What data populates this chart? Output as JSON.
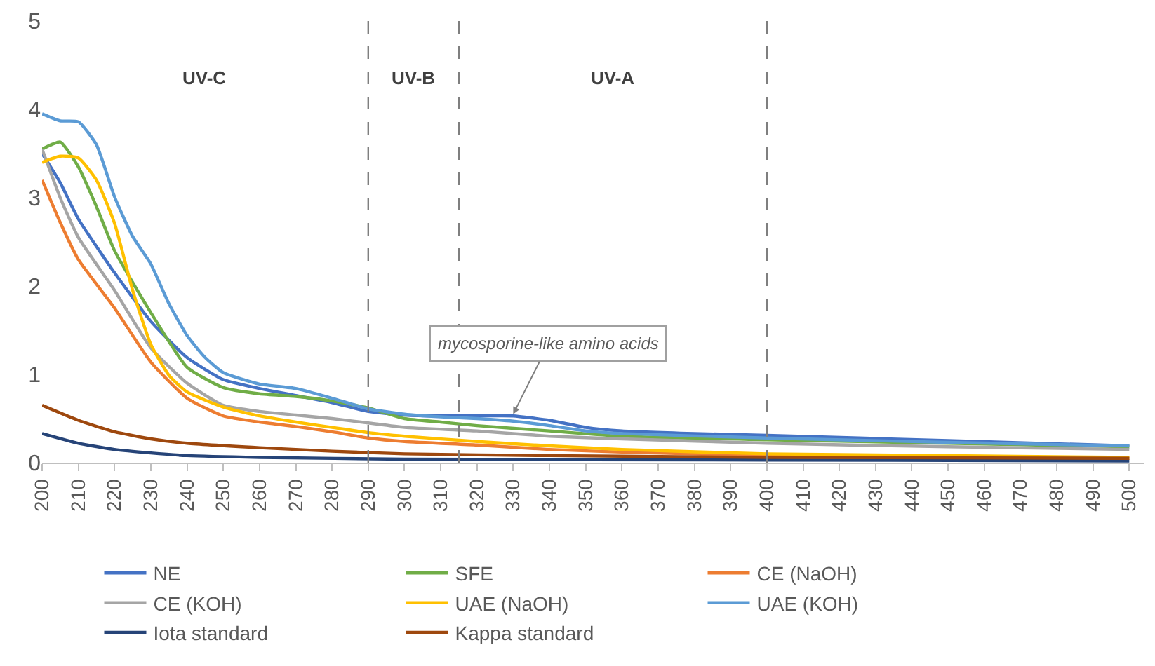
{
  "chart_data": {
    "type": "line",
    "xlim": [
      200,
      504
    ],
    "xticks": [
      200,
      210,
      220,
      230,
      240,
      250,
      260,
      270,
      280,
      290,
      300,
      310,
      320,
      330,
      340,
      350,
      360,
      370,
      380,
      390,
      400,
      410,
      420,
      430,
      440,
      450,
      460,
      470,
      480,
      490,
      500
    ],
    "ylim": [
      0,
      5
    ],
    "yticks": [
      0,
      1,
      2,
      3,
      4,
      5
    ],
    "grid": false,
    "legend": "bottom",
    "line_style": "solid",
    "marker": "none",
    "ref_lines": [
      {
        "axis": "x",
        "value": 290,
        "color": "#7f7f7f",
        "line_style": "dashed"
      },
      {
        "axis": "x",
        "value": 315,
        "color": "#7f7f7f",
        "line_style": "dashed"
      },
      {
        "axis": "x",
        "value": 400,
        "color": "#7f7f7f",
        "line_style": "dashed"
      }
    ],
    "annotations": [
      "UV-C",
      "UV-B",
      "UV-A",
      {
        "text": "mycosporine-like amino acids",
        "x": 330,
        "y": 0.55
      }
    ],
    "series": [
      {
        "name": "NE",
        "color": "#4472c4",
        "x": [
          200,
          205,
          210,
          220,
          230,
          240,
          250,
          260,
          270,
          280,
          290,
          300,
          310,
          320,
          330,
          340,
          350,
          360,
          380,
          400,
          450,
          500
        ],
        "values": [
          3.5,
          3.17,
          2.76,
          2.15,
          1.6,
          1.19,
          0.94,
          0.84,
          0.76,
          0.68,
          0.58,
          0.54,
          0.53,
          0.53,
          0.53,
          0.48,
          0.4,
          0.36,
          0.33,
          0.31,
          0.25,
          0.19
        ]
      },
      {
        "name": "SFE",
        "color": "#70ad47",
        "x": [
          200,
          205,
          210,
          215,
          220,
          230,
          240,
          250,
          260,
          270,
          280,
          290,
          300,
          310,
          320,
          340,
          360,
          400,
          450,
          500
        ],
        "values": [
          3.55,
          3.63,
          3.35,
          2.9,
          2.4,
          1.7,
          1.08,
          0.85,
          0.78,
          0.75,
          0.7,
          0.62,
          0.5,
          0.46,
          0.42,
          0.36,
          0.3,
          0.26,
          0.22,
          0.18
        ]
      },
      {
        "name": "CE (NaOH)",
        "color": "#ed7d31",
        "x": [
          200,
          205,
          210,
          220,
          230,
          240,
          250,
          260,
          270,
          280,
          290,
          300,
          320,
          340,
          360,
          400,
          450,
          500
        ],
        "values": [
          3.2,
          2.72,
          2.3,
          1.75,
          1.14,
          0.73,
          0.53,
          0.46,
          0.41,
          0.35,
          0.28,
          0.24,
          0.2,
          0.15,
          0.12,
          0.08,
          0.06,
          0.05
        ]
      },
      {
        "name": "CE (KOH)",
        "color": "#a5a5a5",
        "x": [
          200,
          205,
          210,
          220,
          230,
          240,
          250,
          260,
          270,
          280,
          290,
          300,
          320,
          340,
          360,
          400,
          450,
          500
        ],
        "values": [
          3.55,
          3.0,
          2.55,
          1.95,
          1.3,
          0.9,
          0.65,
          0.58,
          0.54,
          0.5,
          0.45,
          0.4,
          0.36,
          0.3,
          0.27,
          0.22,
          0.18,
          0.15
        ]
      },
      {
        "name": "UAE (NaOH)",
        "color": "#ffc000",
        "x": [
          200,
          205,
          210,
          215,
          220,
          225,
          230,
          235,
          240,
          250,
          260,
          270,
          280,
          290,
          300,
          320,
          340,
          360,
          400,
          450,
          500
        ],
        "values": [
          3.4,
          3.47,
          3.45,
          3.2,
          2.71,
          1.95,
          1.34,
          0.99,
          0.8,
          0.63,
          0.53,
          0.46,
          0.4,
          0.34,
          0.3,
          0.24,
          0.19,
          0.15,
          0.1,
          0.08,
          0.06
        ]
      },
      {
        "name": "UAE (KOH)",
        "color": "#5b9bd5",
        "x": [
          200,
          205,
          210,
          215,
          220,
          225,
          230,
          235,
          240,
          245,
          250,
          260,
          270,
          280,
          290,
          300,
          310,
          320,
          330,
          340,
          350,
          360,
          400,
          450,
          500
        ],
        "values": [
          3.95,
          3.87,
          3.86,
          3.6,
          3.01,
          2.56,
          2.25,
          1.8,
          1.44,
          1.19,
          1.02,
          0.89,
          0.84,
          0.73,
          0.61,
          0.55,
          0.52,
          0.5,
          0.47,
          0.42,
          0.36,
          0.33,
          0.28,
          0.23,
          0.19
        ]
      },
      {
        "name": "Iota standard",
        "color": "#264478",
        "x": [
          200,
          210,
          220,
          230,
          240,
          260,
          300,
          400,
          500
        ],
        "values": [
          0.33,
          0.22,
          0.15,
          0.11,
          0.08,
          0.06,
          0.04,
          0.03,
          0.02
        ]
      },
      {
        "name": "Kappa standard",
        "color": "#9e480e",
        "x": [
          200,
          210,
          220,
          230,
          240,
          260,
          280,
          300,
          340,
          400,
          500
        ],
        "values": [
          0.65,
          0.48,
          0.35,
          0.27,
          0.22,
          0.17,
          0.13,
          0.1,
          0.08,
          0.06,
          0.05
        ]
      }
    ]
  }
}
